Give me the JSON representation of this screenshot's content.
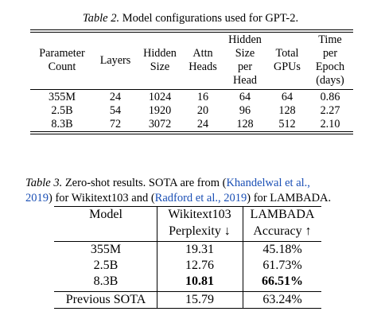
{
  "table2": {
    "caption_label": "Table 2.",
    "caption_text": "Model configurations used for GPT-2.",
    "headers": [
      [
        "Parameter",
        "Count"
      ],
      [
        "Layers"
      ],
      [
        "Hidden",
        "Size"
      ],
      [
        "Attn",
        "Heads"
      ],
      [
        "Hidden",
        "Size",
        "per",
        "Head"
      ],
      [
        "Total",
        "GPUs"
      ],
      [
        "Time",
        "per",
        "Epoch",
        "(days)"
      ]
    ],
    "rows": [
      [
        "355M",
        "24",
        "1024",
        "16",
        "64",
        "64",
        "0.86"
      ],
      [
        "2.5B",
        "54",
        "1920",
        "20",
        "96",
        "128",
        "2.27"
      ],
      [
        "8.3B",
        "72",
        "3072",
        "24",
        "128",
        "512",
        "2.10"
      ]
    ]
  },
  "table3": {
    "caption_label": "Table 3.",
    "caption_pre": "Zero-shot results.  SOTA are from (",
    "cite1_a": "Khandelwal et al.,",
    "cite1_b": "2019",
    "caption_mid": ") for Wikitext103 and (",
    "cite2": "Radford et al., 2019",
    "caption_post": ") for LAMBADA.",
    "headers": [
      [
        "Model"
      ],
      [
        "Wikitext103",
        "Perplexity ↓"
      ],
      [
        "LAMBADA",
        "Accuracy ↑"
      ]
    ],
    "rows": [
      [
        "355M",
        "19.31",
        "45.18%"
      ],
      [
        "2.5B",
        "12.76",
        "61.73%"
      ],
      [
        "8.3B",
        "10.81",
        "66.51%"
      ],
      [
        "Previous SOTA",
        "15.79",
        "63.24%"
      ]
    ]
  }
}
